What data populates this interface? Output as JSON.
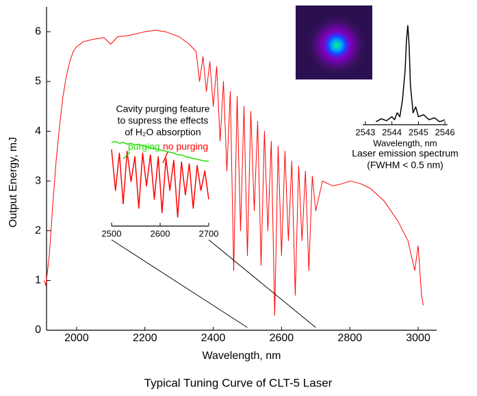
{
  "caption": "Typical Tuning Curve of CLT-5 Laser",
  "chart_data": [
    {
      "type": "line",
      "xlabel": "Wavelength, nm",
      "ylabel": "Output Energy, mJ",
      "color": "#ff0000",
      "xlim": [
        1912,
        3054
      ],
      "ylim": [
        0,
        6.5
      ],
      "xticks": [
        2000,
        2200,
        2400,
        2600,
        2800,
        3000
      ],
      "yticks": [
        0,
        1,
        2,
        3,
        4,
        5,
        6
      ],
      "x": [
        1905,
        1910,
        1920,
        1930,
        1940,
        1950,
        1960,
        1970,
        1980,
        1990,
        2000,
        2020,
        2050,
        2080,
        2100,
        2120,
        2150,
        2200,
        2230,
        2260,
        2300,
        2330,
        2350,
        2360,
        2370,
        2380,
        2390,
        2400,
        2410,
        2420,
        2430,
        2440,
        2450,
        2460,
        2470,
        2480,
        2490,
        2500,
        2510,
        2520,
        2530,
        2540,
        2550,
        2560,
        2570,
        2580,
        2590,
        2600,
        2610,
        2620,
        2630,
        2640,
        2650,
        2660,
        2670,
        2680,
        2690,
        2700,
        2720,
        2750,
        2780,
        2800,
        2830,
        2860,
        2900,
        2940,
        2970,
        2990,
        3000,
        3010,
        3015
      ],
      "values": [
        1.0,
        0.9,
        1.5,
        2.5,
        3.4,
        4.1,
        4.7,
        5.1,
        5.4,
        5.6,
        5.7,
        5.8,
        5.85,
        5.88,
        5.75,
        5.9,
        5.92,
        6.0,
        6.03,
        6.0,
        5.9,
        5.75,
        5.6,
        5.0,
        5.5,
        4.8,
        5.4,
        4.5,
        5.3,
        3.8,
        5.0,
        3.2,
        4.8,
        1.2,
        4.7,
        2.0,
        4.5,
        1.5,
        4.4,
        2.4,
        4.2,
        1.3,
        4.0,
        2.0,
        3.8,
        0.3,
        3.7,
        1.5,
        3.6,
        1.8,
        3.4,
        0.7,
        3.3,
        1.8,
        3.2,
        1.2,
        3.1,
        2.4,
        3.0,
        2.9,
        2.95,
        3.0,
        2.95,
        2.85,
        2.6,
        2.2,
        1.8,
        1.2,
        1.7,
        0.7,
        0.5
      ]
    },
    {
      "type": "line",
      "annotation": [
        "Cavity purging feature",
        "to supress the effects",
        "of H₂O absorption"
      ],
      "xlim": [
        2500,
        2700
      ],
      "ylim": [
        0,
        1
      ],
      "xticks": [
        2500,
        2600,
        2700
      ],
      "x": [
        2500,
        2508,
        2516,
        2524,
        2532,
        2540,
        2548,
        2556,
        2564,
        2572,
        2580,
        2588,
        2596,
        2604,
        2612,
        2620,
        2628,
        2636,
        2644,
        2652,
        2660,
        2668,
        2676,
        2684,
        2692,
        2700
      ],
      "series": [
        {
          "name": "no purging",
          "color": "#ff0000",
          "values": [
            0.86,
            0.4,
            0.82,
            0.25,
            0.84,
            0.5,
            0.78,
            0.2,
            0.82,
            0.45,
            0.8,
            0.3,
            0.78,
            0.15,
            0.76,
            0.4,
            0.74,
            0.1,
            0.72,
            0.35,
            0.7,
            0.2,
            0.68,
            0.4,
            0.62,
            0.3
          ]
        },
        {
          "name": "purging",
          "color": "#22dd00",
          "values": [
            0.94,
            0.95,
            0.93,
            0.94,
            0.92,
            0.93,
            0.91,
            0.92,
            0.9,
            0.89,
            0.88,
            0.87,
            0.86,
            0.85,
            0.84,
            0.83,
            0.82,
            0.8,
            0.8,
            0.78,
            0.77,
            0.76,
            0.75,
            0.74,
            0.73,
            0.73
          ]
        }
      ]
    },
    {
      "type": "line",
      "xlabel": "Wavelength, nm",
      "annotation": [
        "Laser emission spectrum",
        "(FWHM < 0.5 nm)"
      ],
      "color": "#000000",
      "xlim": [
        2542.9,
        2546.1
      ],
      "ylim": [
        0,
        1.05
      ],
      "xticks": [
        2543,
        2544,
        2545,
        2546
      ],
      "x": [
        2543.4,
        2543.6,
        2543.8,
        2544.0,
        2544.1,
        2544.2,
        2544.3,
        2544.4,
        2544.5,
        2544.55,
        2544.6,
        2544.65,
        2544.7,
        2544.8,
        2544.9,
        2545.0,
        2545.2,
        2545.4,
        2545.6,
        2545.8,
        2546.0
      ],
      "values": [
        0.03,
        0.06,
        0.04,
        0.08,
        0.05,
        0.12,
        0.08,
        0.25,
        0.55,
        0.85,
        1.0,
        0.8,
        0.4,
        0.12,
        0.18,
        0.08,
        0.1,
        0.05,
        0.07,
        0.03,
        0.05
      ]
    }
  ]
}
